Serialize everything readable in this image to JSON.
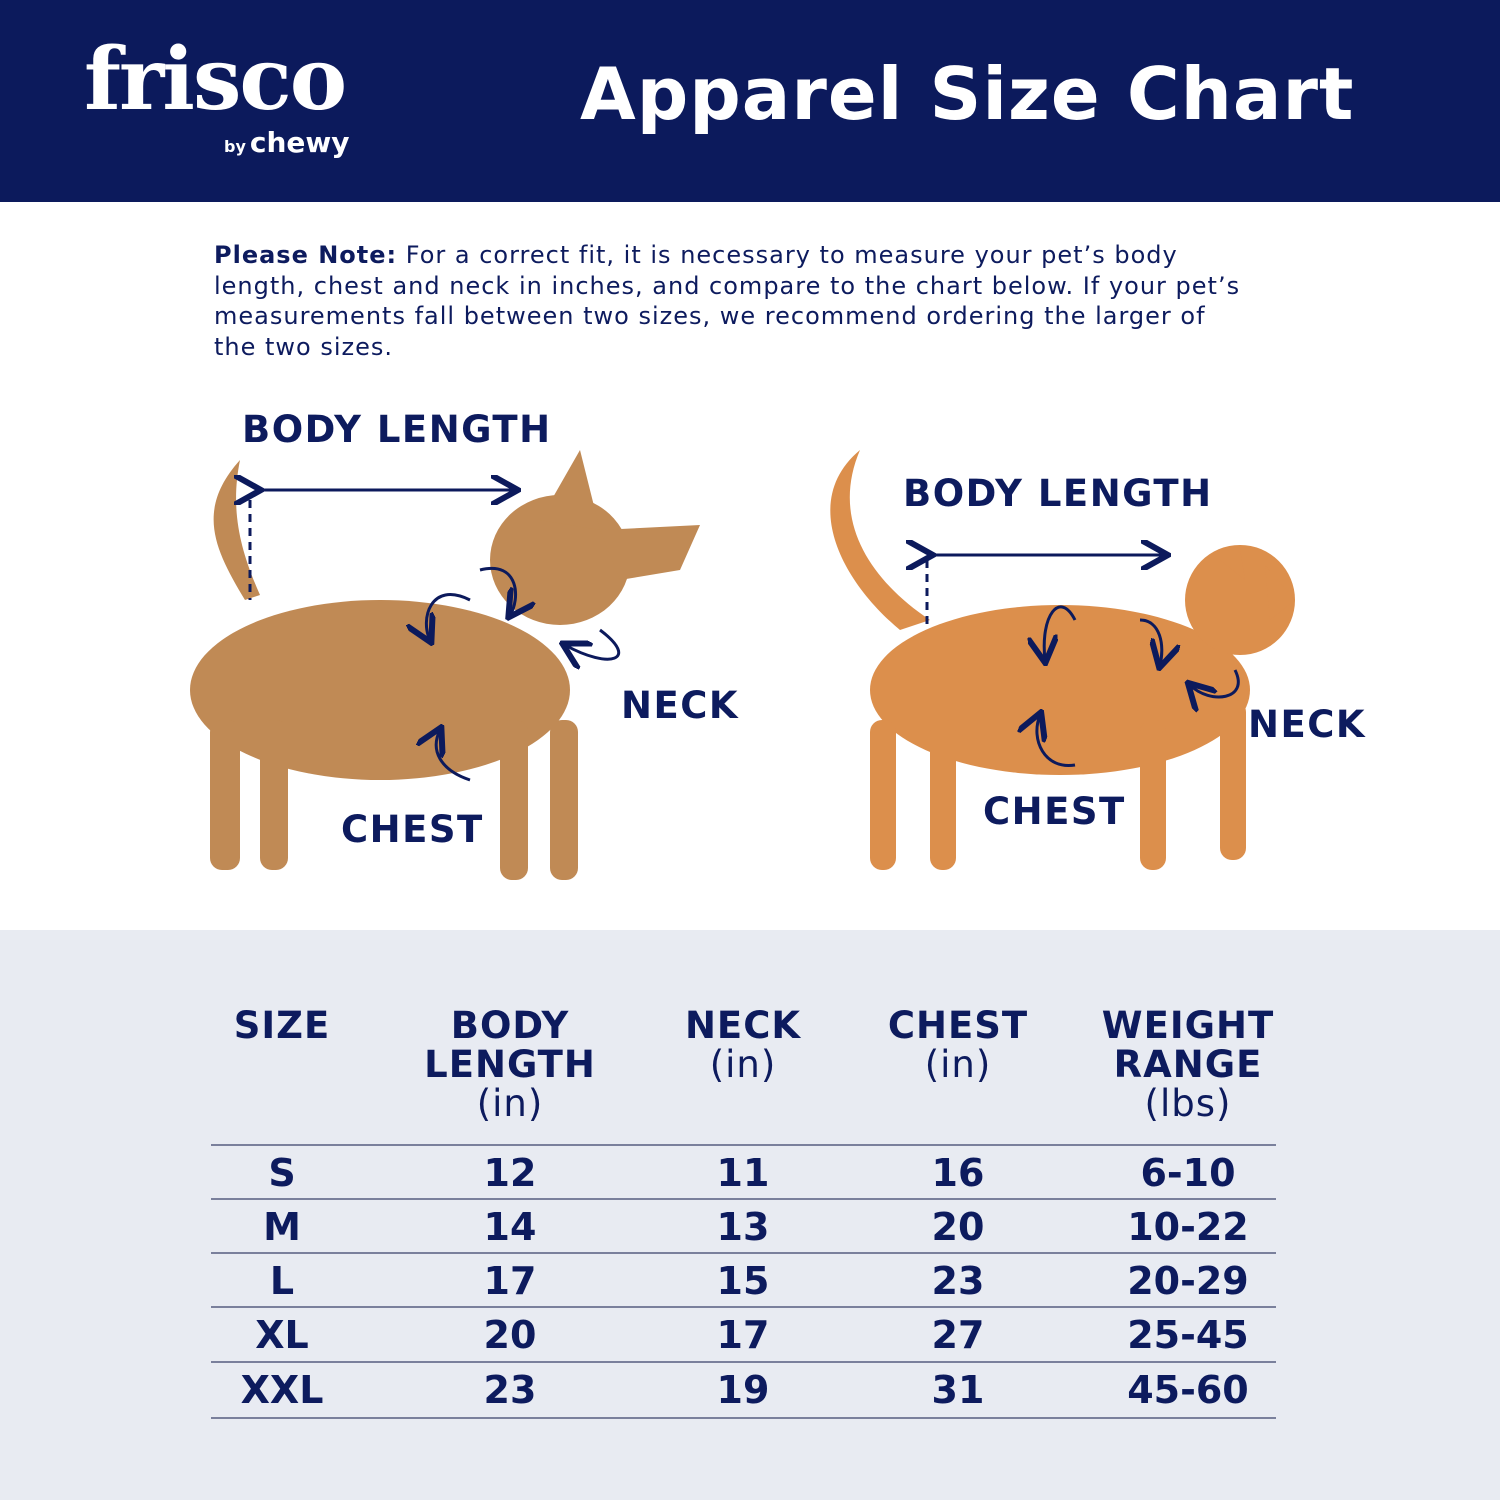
{
  "header": {
    "logo": {
      "brand": "frisco",
      "sub_prefix": "by",
      "sub_brand": "chewy"
    },
    "title": "Apparel Size Chart",
    "background_color": "#0c1a5c"
  },
  "note": {
    "lead": "Please Note:",
    "text": " For a correct fit, it is necessary to measure your pet’s body length, chest and neck in inches, and compare to the chart below. If your pet’s measurements fall between two sizes, we recommend ordering the larger of the two sizes."
  },
  "dog_labels": {
    "body_length": "BODY LENGTH",
    "neck": "NECK",
    "chest": "CHEST"
  },
  "cat_labels": {
    "body_length": "BODY LENGTH",
    "neck": "NECK",
    "chest": "CHEST"
  },
  "table": {
    "columns": [
      {
        "title": "SIZE",
        "title2": "",
        "unit": ""
      },
      {
        "title": "BODY",
        "title2": "LENGTH",
        "unit": "(in)"
      },
      {
        "title": "NECK",
        "title2": "",
        "unit": "(in)"
      },
      {
        "title": "CHEST",
        "title2": "",
        "unit": "(in)"
      },
      {
        "title": "WEIGHT",
        "title2": "RANGE",
        "unit": "(lbs)"
      }
    ],
    "rows": [
      [
        "S",
        "12",
        "11",
        "16",
        "6-10"
      ],
      [
        "M",
        "14",
        "13",
        "20",
        "10-22"
      ],
      [
        "L",
        "17",
        "15",
        "23",
        "20-29"
      ],
      [
        "XL",
        "20",
        "17",
        "27",
        "25-45"
      ],
      [
        "XXL",
        "23",
        "19",
        "31",
        "45-60"
      ]
    ],
    "background_color": "#e8ebf2"
  },
  "colors": {
    "navy": "#0c1a5c",
    "dog": "#c08a55",
    "cat": "#dc8f4c"
  }
}
